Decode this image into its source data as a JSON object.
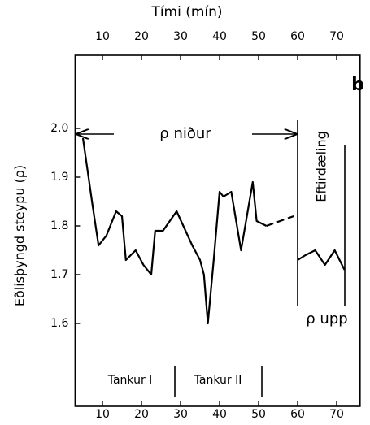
{
  "chart_data": {
    "type": "line",
    "title": "Tími (mín)",
    "ylabel": "Eðlisþyngd steypu (ρ)",
    "panel_label": "b",
    "annotations": [
      "ρ niður",
      "Eftirdæling",
      "ρ upp",
      "Tankur I",
      "Tankur II"
    ],
    "color": "#000000",
    "series": [
      {
        "x": [
          5,
          7.5,
          9,
          11,
          13.5,
          15,
          16,
          18.5,
          20.5,
          22.5,
          23.5,
          25.5,
          29,
          33,
          35,
          36,
          37,
          38.5,
          40,
          41,
          43,
          45.5,
          48.5,
          49.5,
          52
        ],
        "values": [
          1.98,
          1.84,
          1.76,
          1.78,
          1.83,
          1.82,
          1.73,
          1.75,
          1.72,
          1.7,
          1.79,
          1.79,
          1.83,
          1.76,
          1.73,
          1.7,
          1.6,
          1.73,
          1.87,
          1.86,
          1.87,
          1.75,
          1.89,
          1.81,
          1.8
        ],
        "dashed": false
      },
      {
        "x": [
          52,
          59
        ],
        "values": [
          1.8,
          1.82
        ],
        "dashed": true
      },
      {
        "x": [
          60,
          62,
          64.5,
          67,
          69.5,
          72
        ],
        "values": [
          1.73,
          1.74,
          1.75,
          1.72,
          1.75,
          1.71
        ],
        "dashed": false
      }
    ],
    "xlim": [
      3,
      76
    ],
    "xticks": [
      10,
      20,
      30,
      40,
      50,
      60,
      70
    ],
    "ylim": [
      1.43,
      2.15
    ],
    "yticks": [
      1.6,
      1.7,
      1.8,
      1.9,
      {
        "value": 2.0,
        "label": "2.0"
      }
    ]
  }
}
